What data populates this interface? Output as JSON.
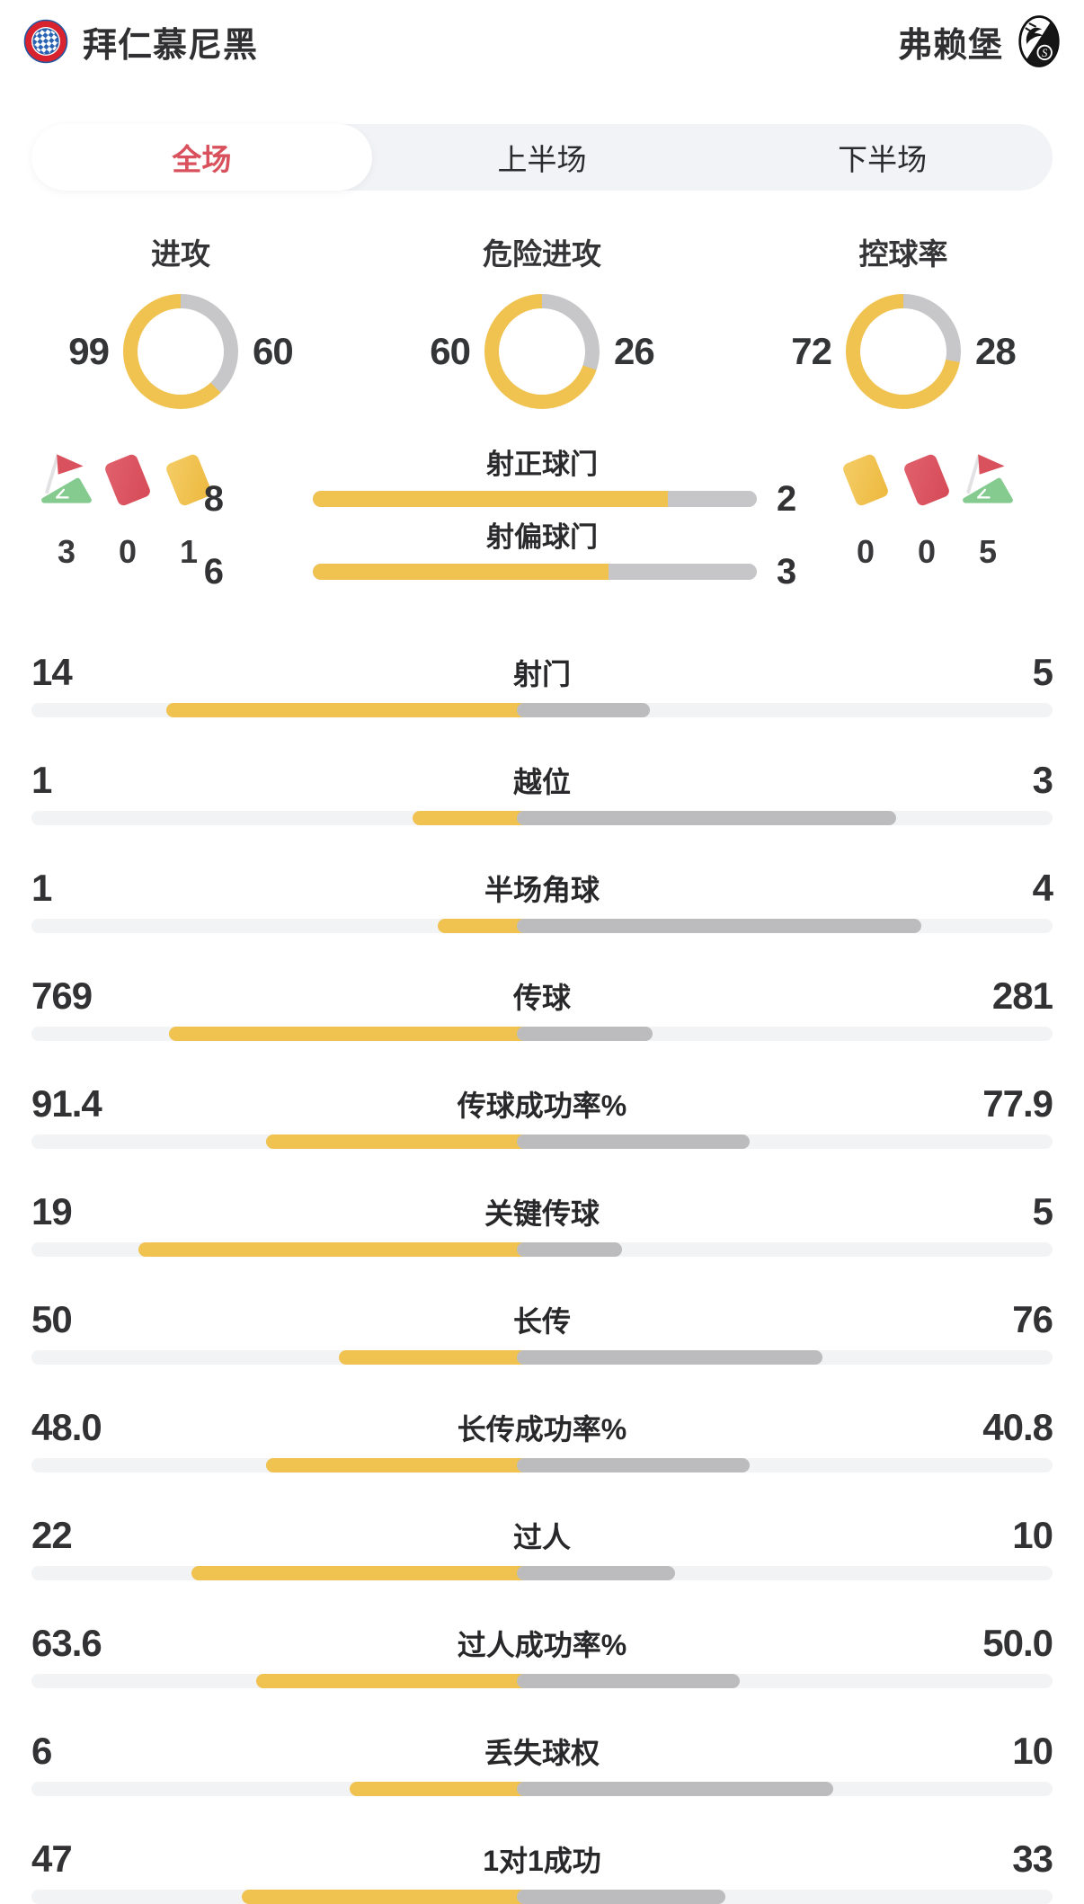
{
  "header": {
    "home_team": "拜仁慕尼黑",
    "away_team": "弗赖堡",
    "home_logo": "fc-bayern-crest",
    "away_logo": "sc-freiburg-crest"
  },
  "tabs": [
    {
      "label": "全场",
      "active": true
    },
    {
      "label": "上半场",
      "active": false
    },
    {
      "label": "下半场",
      "active": false
    }
  ],
  "colors": {
    "home_bar_yellow": "#F0C250",
    "away_bar_gray": "#BCBCBE",
    "donut_gray": "#C7C7C9",
    "shot_track_gray": "#C6C6C8",
    "stat_track": "#F2F3F5",
    "tab_active_text": "#D8515C",
    "card_red": "#D9515D",
    "card_yellow": "#F0C24F",
    "flag_green": "#85CB90"
  },
  "chart_data": {
    "type": "table",
    "title": "拜仁慕尼黑 vs 弗赖堡 全场技术统计",
    "donuts": [
      {
        "label": "进攻",
        "home": 99,
        "away": 60
      },
      {
        "label": "危险进攻",
        "home": 60,
        "away": 26
      },
      {
        "label": "控球率",
        "home": 72,
        "away": 28
      }
    ],
    "discipline_home": {
      "icons": [
        "corner-flag",
        "red-card",
        "yellow-card"
      ],
      "values": [
        3,
        0,
        1
      ]
    },
    "discipline_away": {
      "icons": [
        "yellow-card",
        "red-card",
        "corner-flag"
      ],
      "values": [
        0,
        0,
        5
      ]
    },
    "shot_bars": [
      {
        "label": "射正球门",
        "home": 8,
        "away": 2
      },
      {
        "label": "射偏球门",
        "home": 6,
        "away": 3
      }
    ],
    "stats": [
      {
        "label": "射门",
        "home": "14",
        "away": "5"
      },
      {
        "label": "越位",
        "home": "1",
        "away": "3"
      },
      {
        "label": "半场角球",
        "home": "1",
        "away": "4"
      },
      {
        "label": "传球",
        "home": "769",
        "away": "281"
      },
      {
        "label": "传球成功率%",
        "home": "91.4",
        "away": "77.9"
      },
      {
        "label": "关键传球",
        "home": "19",
        "away": "5"
      },
      {
        "label": "长传",
        "home": "50",
        "away": "76"
      },
      {
        "label": "长传成功率%",
        "home": "48.0",
        "away": "40.8"
      },
      {
        "label": "过人",
        "home": "22",
        "away": "10"
      },
      {
        "label": "过人成功率%",
        "home": "63.6",
        "away": "50.0"
      },
      {
        "label": "丢失球权",
        "home": "6",
        "away": "10"
      },
      {
        "label": "1对1成功",
        "home": "47",
        "away": "33"
      }
    ]
  }
}
